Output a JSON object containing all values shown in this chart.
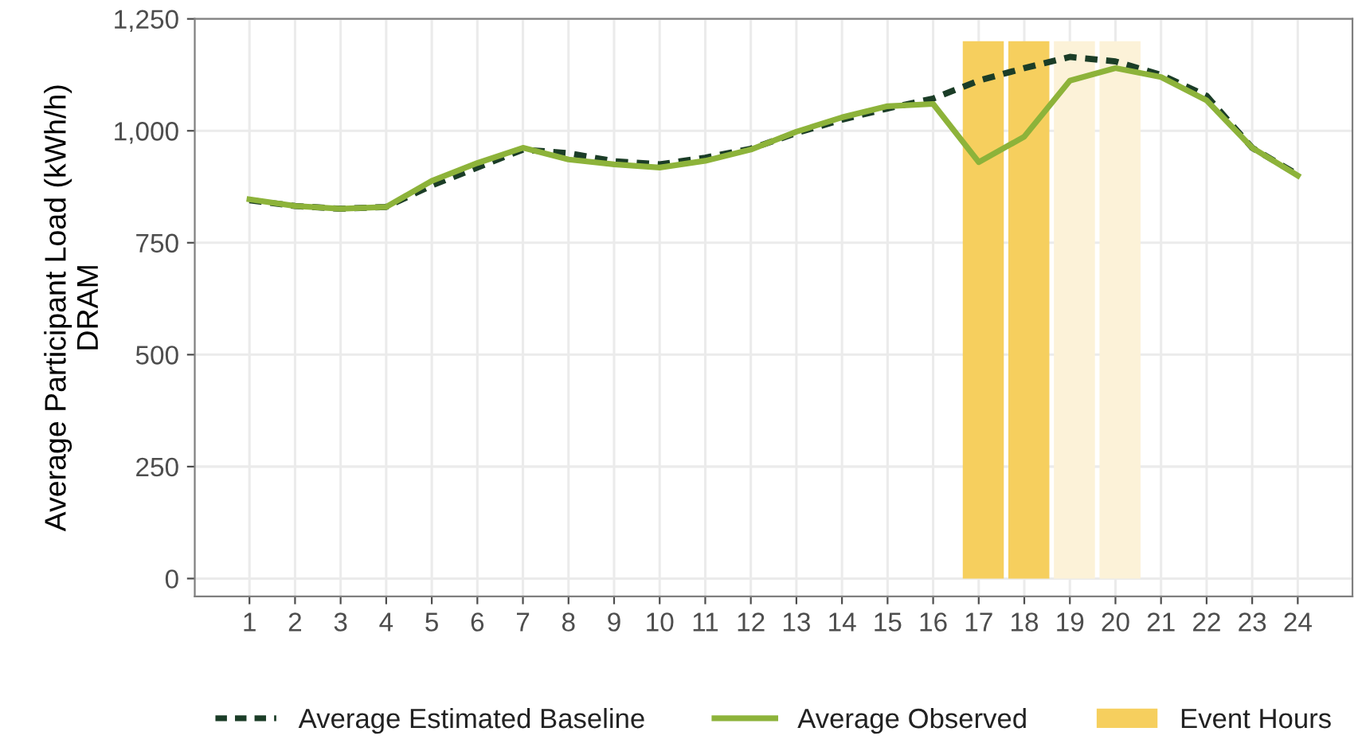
{
  "chart_data": {
    "type": "line",
    "ylabel": "Average Participant Load (kWh/h)\nDRAM",
    "xlim": [
      -0.2,
      25.2
    ],
    "xticks": [
      1,
      2,
      3,
      4,
      5,
      6,
      7,
      8,
      9,
      10,
      11,
      12,
      13,
      14,
      15,
      16,
      17,
      18,
      19,
      20,
      21,
      22,
      23,
      24
    ],
    "ylim": [
      -40,
      1250
    ],
    "yticks": [
      {
        "value": 0,
        "label": "0"
      },
      {
        "value": 250,
        "label": "250"
      },
      {
        "value": 500,
        "label": "500"
      },
      {
        "value": 750,
        "label": "750"
      },
      {
        "value": 1000,
        "label": "1,000"
      },
      {
        "value": 1250,
        "label": "1,250"
      }
    ],
    "grid": true,
    "legend": "bottom",
    "series": [
      {
        "name": "Event Hours",
        "type": "bar",
        "x": [
          17.1,
          18.1,
          19.1,
          20.1
        ],
        "values": [
          1200,
          1200,
          1200,
          1200
        ],
        "color": "#f6cf5e",
        "colors": [
          "#f6cf5e",
          "#f6cf5e",
          "#fcf2d8",
          "#fcf2d8"
        ]
      },
      {
        "name": "Average Estimated Baseline",
        "line_style": "dashed",
        "color": "#1b3d27",
        "x": [
          1,
          2,
          3,
          4,
          5,
          6,
          7,
          8,
          9,
          10,
          11,
          12,
          13,
          14,
          15,
          16,
          17,
          18,
          19,
          20,
          21,
          22,
          23,
          24
        ],
        "values": [
          845,
          832,
          826,
          830,
          878,
          918,
          958,
          950,
          932,
          925,
          940,
          960,
          995,
          1025,
          1050,
          1072,
          1112,
          1140,
          1165,
          1155,
          1125,
          1078,
          962,
          902
        ]
      },
      {
        "name": "Average Observed",
        "line_style": "solid",
        "color": "#8db33a",
        "x": [
          1,
          2,
          3,
          4,
          5,
          6,
          7,
          8,
          9,
          10,
          11,
          12,
          13,
          14,
          15,
          16,
          17,
          18,
          19,
          20,
          21,
          22,
          23,
          24
        ],
        "values": [
          847,
          832,
          826,
          830,
          888,
          928,
          962,
          936,
          925,
          918,
          933,
          958,
          998,
          1030,
          1055,
          1060,
          930,
          987,
          1112,
          1140,
          1120,
          1068,
          962,
          900
        ]
      }
    ]
  }
}
